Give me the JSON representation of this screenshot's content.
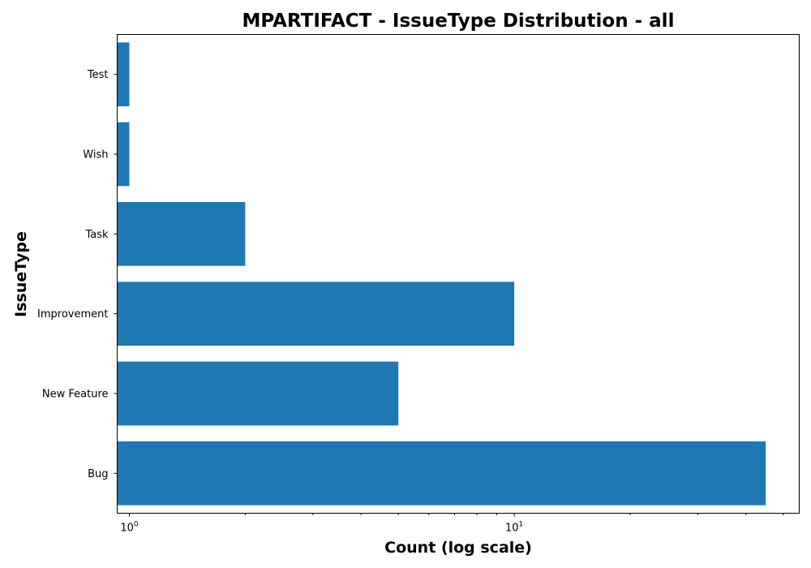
{
  "chart_data": {
    "type": "bar",
    "orientation": "horizontal",
    "title": "MPARTIFACT - IssueType Distribution - all",
    "xlabel": "Count (log scale)",
    "ylabel": "IssueType",
    "x_scale": "log",
    "xlim": [
      0.93,
      55
    ],
    "x_major_ticks": [
      1,
      10
    ],
    "x_major_tick_labels": [
      {
        "base": "10",
        "exp": "0"
      },
      {
        "base": "10",
        "exp": "1"
      }
    ],
    "x_minor_ticks": [
      2,
      3,
      4,
      5,
      6,
      7,
      8,
      9,
      20,
      30,
      40,
      50
    ],
    "grid": false,
    "legend": "none",
    "categories": [
      "Bug",
      "New Feature",
      "Improvement",
      "Task",
      "Wish",
      "Test"
    ],
    "values": [
      45,
      5,
      10,
      2,
      1,
      1
    ],
    "bar_color": "#1f77b4"
  }
}
